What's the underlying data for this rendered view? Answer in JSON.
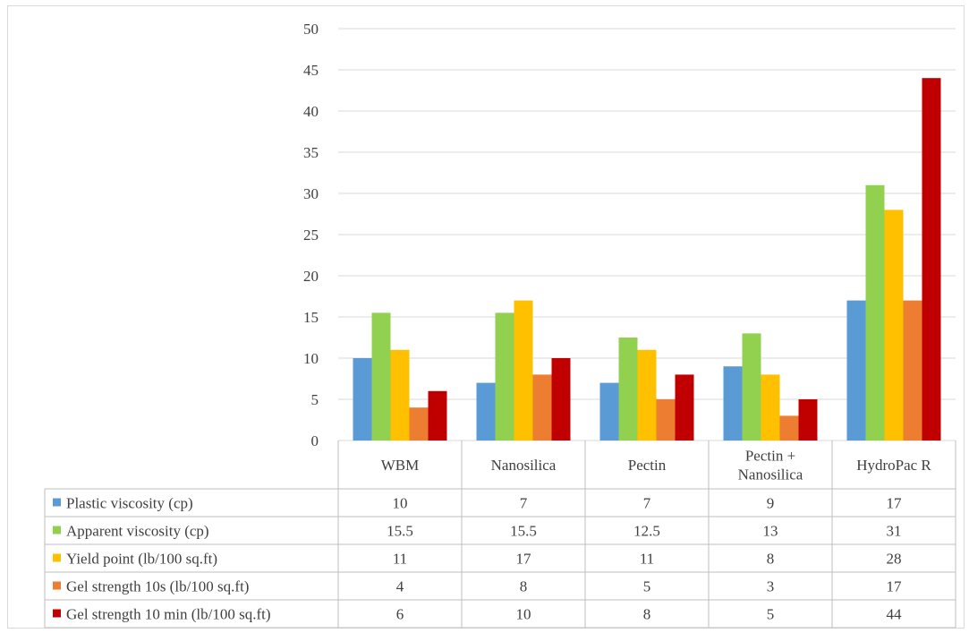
{
  "chart_data": {
    "type": "bar",
    "categories": [
      "WBM",
      "Nanosilica",
      "Pectin",
      "Pectin +\nNanosilica",
      "HydroPac R"
    ],
    "series": [
      {
        "name": "Plastic viscosity (cp)",
        "color": "#5b9bd5",
        "values": [
          10,
          7,
          7,
          9,
          17
        ]
      },
      {
        "name": "Apparent viscosity (cp)",
        "color": "#92d050",
        "values": [
          15.5,
          15.5,
          12.5,
          13,
          31
        ]
      },
      {
        "name": "Yield point (lb/100 sq.ft)",
        "color": "#ffc000",
        "values": [
          11,
          17,
          11,
          8,
          28
        ]
      },
      {
        "name": "Gel strength 10s (lb/100 sq.ft)",
        "color": "#ed7d31",
        "values": [
          4,
          8,
          5,
          3,
          17
        ]
      },
      {
        "name": "Gel strength 10 min (lb/100 sq.ft)",
        "color": "#c00000",
        "values": [
          6,
          10,
          8,
          5,
          44
        ]
      }
    ],
    "ylim": [
      0,
      50
    ],
    "yticks": [
      0,
      5,
      10,
      15,
      20,
      25,
      30,
      35,
      40,
      45,
      50
    ],
    "grid": true,
    "legend": "data-table"
  }
}
